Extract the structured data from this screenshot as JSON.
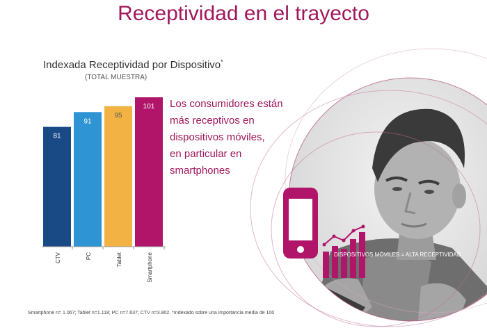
{
  "header": {
    "title": "Receptividad en el trayecto"
  },
  "chart_data": {
    "type": "bar",
    "title": "Indexada Receptividad por Dispositivo",
    "title_mark": "*",
    "subtitle": "(TOTAL MUESTRA)",
    "categories": [
      "CTV",
      "PC",
      "Tablet",
      "Smartphone"
    ],
    "values": [
      81,
      91,
      95,
      101
    ],
    "colors": [
      "#194a86",
      "#2f94d3",
      "#f2b344",
      "#b0156a"
    ],
    "label_colors": [
      "#ffffff",
      "#ffffff",
      "#555555",
      "#ffffff"
    ],
    "ylim": [
      0,
      101
    ],
    "grid": false,
    "legend": "none"
  },
  "message": {
    "lines": [
      "Los consumidores están",
      "más receptivos en",
      "dispositivos móviles,",
      "en particular en",
      "smartphones"
    ]
  },
  "badge": {
    "text": "DISPOSITIVOS MÓVILES = ALTA RECEPTIVIDAD"
  },
  "footnote": {
    "text": "Smartphone n= 1.067; Tablet n=1.118; PC n=7.637; CTV n=3.802. *Indexado sobre una importancia media de 100"
  },
  "colors": {
    "accent": "#a0185b"
  },
  "icons": [
    "smartphone-icon",
    "bar-chart-trend-icon"
  ]
}
